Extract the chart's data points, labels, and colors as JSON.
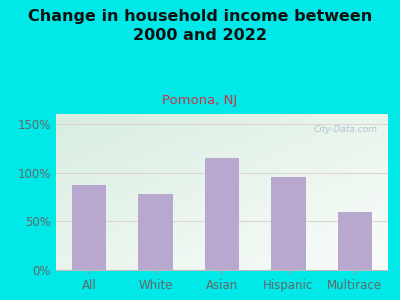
{
  "title": "Change in household income between\n2000 and 2022",
  "subtitle": "Pomona, NJ",
  "categories": [
    "All",
    "White",
    "Asian",
    "Hispanic",
    "Multirace"
  ],
  "values": [
    87,
    78,
    115,
    95,
    60
  ],
  "bar_color": "#b8a8d0",
  "title_fontsize": 11.5,
  "subtitle_fontsize": 9.5,
  "subtitle_color": "#cc3344",
  "title_color": "#111111",
  "bg_outer": "#00e8e8",
  "bg_plot_top_left": "#d8ede0",
  "bg_plot_bottom_right": "#f0f8f8",
  "yticks": [
    0,
    50,
    100,
    150
  ],
  "ylim": [
    0,
    160
  ],
  "grid_color": "#ddcccc",
  "tick_color": "#666666",
  "watermark": "City-Data.com"
}
